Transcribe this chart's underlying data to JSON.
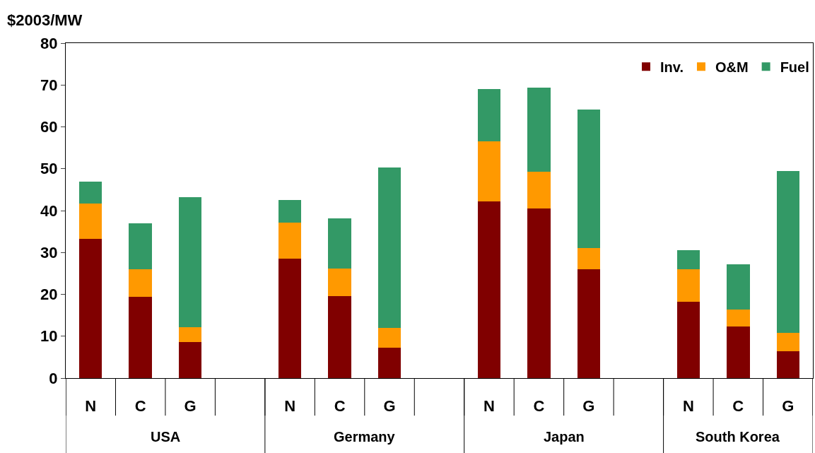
{
  "chart_data": {
    "type": "bar",
    "stacked": true,
    "ylabel": "$2003/MW",
    "categories": [
      "N",
      "C",
      "G",
      null,
      "N",
      "C",
      "G",
      null,
      "N",
      "C",
      "G",
      null,
      "N",
      "C",
      "G"
    ],
    "series": [
      {
        "name": "Inv.",
        "color": "#800000",
        "values": [
          33.2,
          19.4,
          8.6,
          null,
          28.5,
          19.6,
          7.3,
          null,
          42.2,
          40.5,
          26.0,
          null,
          18.2,
          12.3,
          6.4
        ]
      },
      {
        "name": "O&M",
        "color": "#ff9900",
        "values": [
          8.5,
          6.6,
          3.6,
          null,
          8.6,
          6.6,
          4.7,
          null,
          14.3,
          8.8,
          5.0,
          null,
          7.8,
          4.1,
          4.4
        ]
      },
      {
        "name": "Fuel",
        "color": "#339966",
        "values": [
          5.2,
          11.0,
          31.0,
          null,
          5.4,
          11.9,
          38.3,
          null,
          12.5,
          20.1,
          33.1,
          null,
          4.6,
          10.8,
          38.7
        ]
      }
    ],
    "annotations": [
      "USA",
      "Germany",
      "Japan",
      "South Korea"
    ],
    "ylim": [
      0,
      80
    ],
    "yticks": [
      0,
      10,
      20,
      30,
      40,
      50,
      60,
      70,
      80
    ],
    "grid": false,
    "legend": "top right"
  }
}
